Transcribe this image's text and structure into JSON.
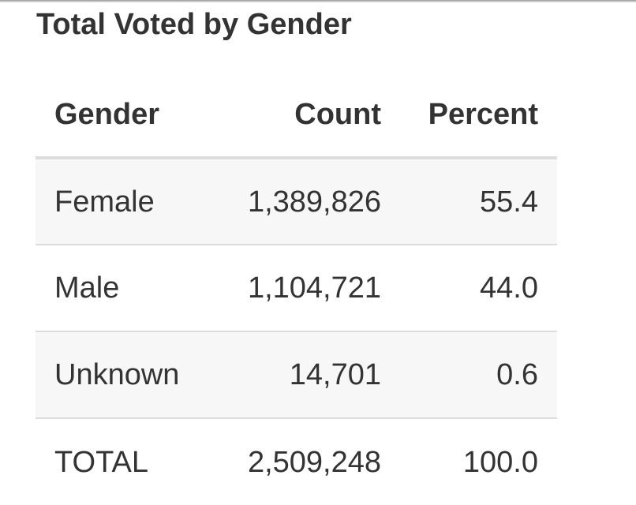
{
  "title": "Total Voted by Gender",
  "table": {
    "headers": {
      "gender": "Gender",
      "count": "Count",
      "percent": "Percent"
    },
    "rows": [
      {
        "gender": "Female",
        "count": "1,389,826",
        "percent": "55.4"
      },
      {
        "gender": "Male",
        "count": "1,104,721",
        "percent": "44.0"
      },
      {
        "gender": "Unknown",
        "count": "14,701",
        "percent": "0.6"
      },
      {
        "gender": "TOTAL",
        "count": "2,509,248",
        "percent": "100.0"
      }
    ]
  },
  "colors": {
    "text": "#333333",
    "stripe": "#f7f7f7",
    "rule": "#dddddd"
  }
}
